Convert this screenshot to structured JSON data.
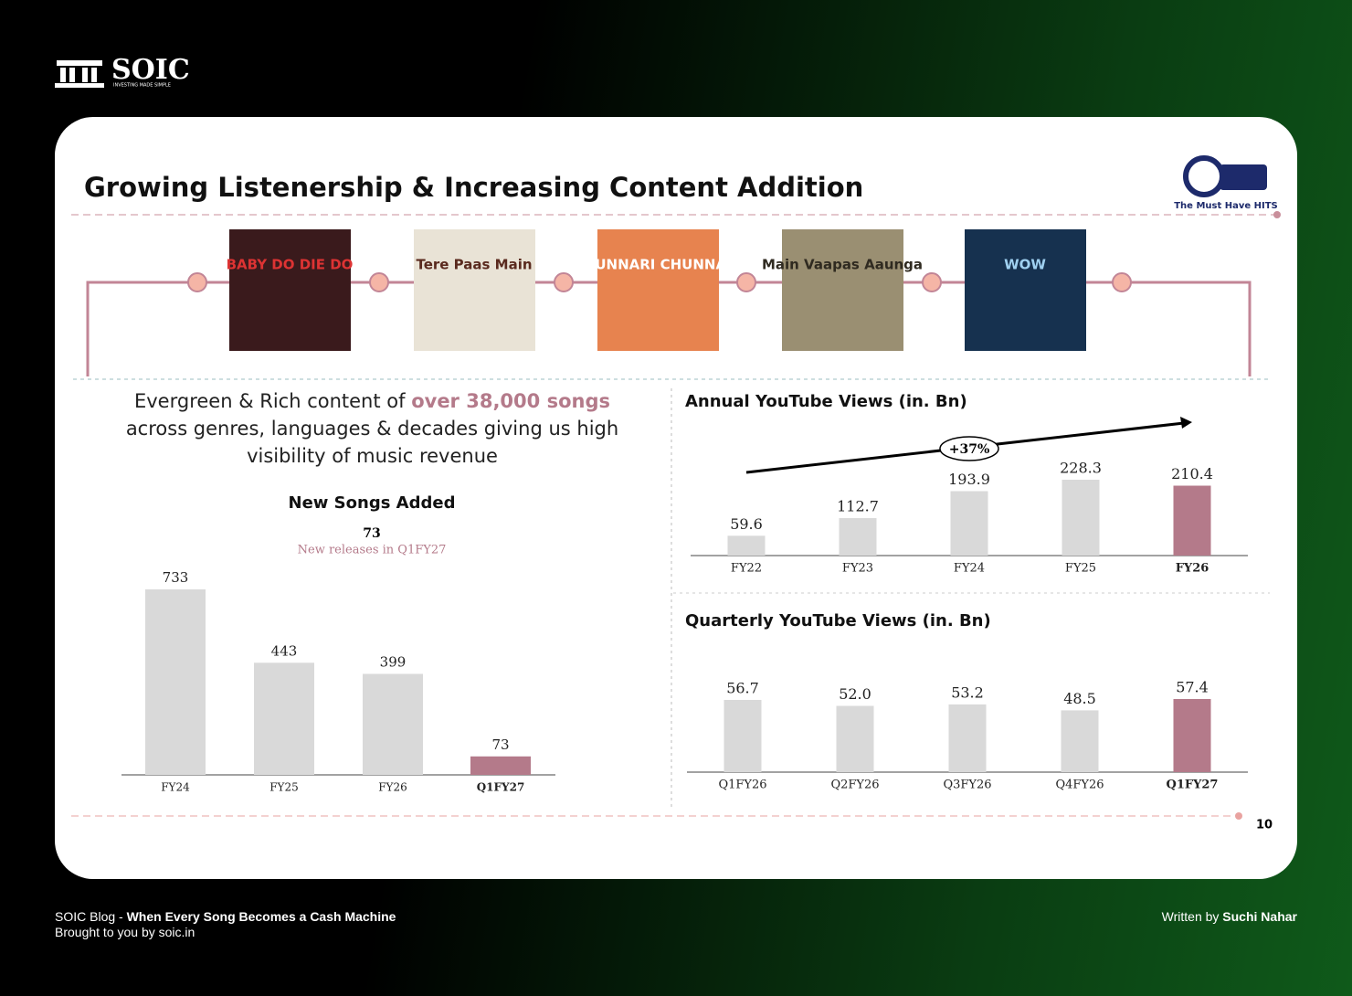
{
  "logo": {
    "name": "SOIC",
    "tagline": "INVESTING MADE SIMPLE"
  },
  "slide": {
    "title": "Growing Listenership & Increasing Content Addition",
    "brand_tagline": "The Must Have HITS",
    "posters": [
      "BABY DO DIE DO",
      "Tere Paas Main",
      "CHUNNARI CHUNNARI",
      "Main Vaapas Aaunga",
      "WOW"
    ],
    "blurb": [
      "Evergreen & Rich content of ",
      "over 38,000 songs",
      " across genres, languages & decades giving us high visibility of music revenue"
    ],
    "page_number": "10"
  },
  "chart_data": [
    {
      "type": "bar",
      "title": "New Songs Added",
      "highlight": {
        "value": 73,
        "label": "New releases in Q1FY27"
      },
      "categories": [
        "FY24",
        "FY25",
        "FY26",
        "Q1FY27"
      ],
      "values": [
        733,
        443,
        399,
        73
      ],
      "colors": [
        "#d9d9d9",
        "#d9d9d9",
        "#d9d9d9",
        "#b47a8a"
      ]
    },
    {
      "type": "bar",
      "title": "Annual YouTube Views (in. Bn)",
      "annotation": "+37%",
      "categories": [
        "FY22",
        "FY23",
        "FY24",
        "FY25",
        "FY26"
      ],
      "values": [
        59.6,
        112.7,
        193.9,
        228.3,
        210.4
      ],
      "colors": [
        "#d9d9d9",
        "#d9d9d9",
        "#d9d9d9",
        "#d9d9d9",
        "#b47a8a"
      ]
    },
    {
      "type": "bar",
      "title": "Quarterly YouTube Views (in. Bn)",
      "categories": [
        "Q1FY26",
        "Q2FY26",
        "Q3FY26",
        "Q4FY26",
        "Q1FY27"
      ],
      "values": [
        56.7,
        52.0,
        53.2,
        48.5,
        57.4
      ],
      "value_labels": [
        "56.7",
        "52.0",
        "53.2",
        "48.5",
        "57.4"
      ],
      "colors": [
        "#d9d9d9",
        "#d9d9d9",
        "#d9d9d9",
        "#d9d9d9",
        "#b47a8a"
      ]
    }
  ],
  "footer": {
    "blog_label": "SOIC Blog - ",
    "blog_title": "When Every Song Becomes a Cash Machine",
    "credit": "Brought to you by soic.in",
    "author_label": "Written by ",
    "author": "Suchi Nahar"
  }
}
